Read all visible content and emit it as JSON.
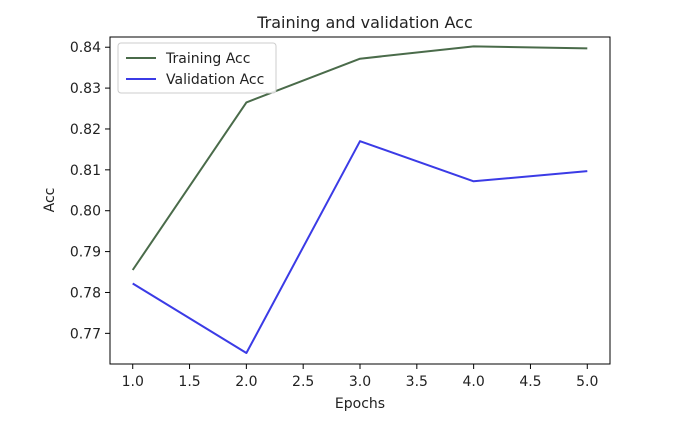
{
  "chart_data": {
    "type": "line",
    "title": "Training and validation Acc",
    "xlabel": "Epochs",
    "ylabel": "Acc",
    "xlim": [
      0.8,
      5.2
    ],
    "ylim": [
      0.7625,
      0.8425
    ],
    "xticks": [
      1.0,
      1.5,
      2.0,
      2.5,
      3.0,
      3.5,
      4.0,
      4.5,
      5.0
    ],
    "xtick_labels": [
      "1.0",
      "1.5",
      "2.0",
      "2.5",
      "3.0",
      "3.5",
      "4.0",
      "4.5",
      "5.0"
    ],
    "yticks": [
      0.77,
      0.78,
      0.79,
      0.8,
      0.81,
      0.82,
      0.83,
      0.84
    ],
    "ytick_labels": [
      "0.77",
      "0.78",
      "0.79",
      "0.80",
      "0.81",
      "0.82",
      "0.83",
      "0.84"
    ],
    "grid": false,
    "legend_position": "top-left",
    "x": [
      1,
      2,
      3,
      4,
      5
    ],
    "series": [
      {
        "name": "Training Acc",
        "color": "#4a6b4a",
        "values": [
          0.7855,
          0.8265,
          0.8372,
          0.8402,
          0.8397
        ]
      },
      {
        "name": "Validation Acc",
        "color": "#3b3be6",
        "values": [
          0.7822,
          0.7652,
          0.817,
          0.8072,
          0.8097
        ]
      }
    ]
  }
}
